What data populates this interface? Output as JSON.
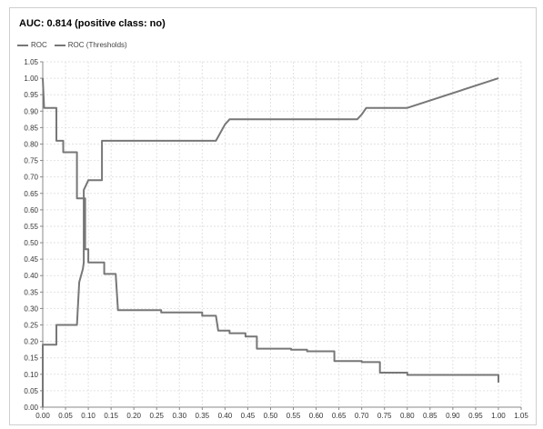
{
  "chart_data": {
    "type": "line",
    "title": "AUC: 0.814 (positive class: no)",
    "xlabel": "",
    "ylabel": "",
    "xlim": [
      0.0,
      1.05
    ],
    "ylim": [
      0.0,
      1.05
    ],
    "xticks": [
      "0.00",
      "0.05",
      "0.10",
      "0.15",
      "0.20",
      "0.25",
      "0.30",
      "0.35",
      "0.40",
      "0.45",
      "0.50",
      "0.55",
      "0.60",
      "0.65",
      "0.70",
      "0.75",
      "0.80",
      "0.85",
      "0.90",
      "0.95",
      "1.00",
      "1.05"
    ],
    "yticks": [
      "0.00",
      "0.05",
      "0.10",
      "0.15",
      "0.20",
      "0.25",
      "0.30",
      "0.35",
      "0.40",
      "0.45",
      "0.50",
      "0.55",
      "0.60",
      "0.65",
      "0.70",
      "0.75",
      "0.80",
      "0.85",
      "0.90",
      "0.95",
      "1.00",
      "1.05"
    ],
    "grid": true,
    "legend_position": "top-left",
    "series": [
      {
        "name": "ROC",
        "color": "#777777",
        "points": [
          [
            0.0,
            0.0
          ],
          [
            0.0,
            0.19
          ],
          [
            0.03,
            0.19
          ],
          [
            0.03,
            0.25
          ],
          [
            0.075,
            0.25
          ],
          [
            0.08,
            0.38
          ],
          [
            0.088,
            0.42
          ],
          [
            0.09,
            0.44
          ],
          [
            0.09,
            0.66
          ],
          [
            0.095,
            0.675
          ],
          [
            0.1,
            0.69
          ],
          [
            0.13,
            0.69
          ],
          [
            0.13,
            0.81
          ],
          [
            0.38,
            0.81
          ],
          [
            0.4,
            0.86
          ],
          [
            0.41,
            0.875
          ],
          [
            0.69,
            0.875
          ],
          [
            0.7,
            0.89
          ],
          [
            0.71,
            0.91
          ],
          [
            0.8,
            0.91
          ],
          [
            1.0,
            1.0
          ]
        ]
      },
      {
        "name": "ROC (Thresholds)",
        "color": "#777777",
        "points": [
          [
            0.0,
            1.0
          ],
          [
            0.003,
            0.91
          ],
          [
            0.03,
            0.91
          ],
          [
            0.03,
            0.81
          ],
          [
            0.045,
            0.81
          ],
          [
            0.045,
            0.775
          ],
          [
            0.075,
            0.775
          ],
          [
            0.075,
            0.635
          ],
          [
            0.093,
            0.635
          ],
          [
            0.093,
            0.48
          ],
          [
            0.1,
            0.48
          ],
          [
            0.1,
            0.44
          ],
          [
            0.135,
            0.44
          ],
          [
            0.135,
            0.405
          ],
          [
            0.16,
            0.405
          ],
          [
            0.165,
            0.295
          ],
          [
            0.26,
            0.295
          ],
          [
            0.26,
            0.288
          ],
          [
            0.35,
            0.288
          ],
          [
            0.35,
            0.278
          ],
          [
            0.38,
            0.278
          ],
          [
            0.385,
            0.233
          ],
          [
            0.41,
            0.233
          ],
          [
            0.41,
            0.225
          ],
          [
            0.445,
            0.225
          ],
          [
            0.445,
            0.215
          ],
          [
            0.47,
            0.215
          ],
          [
            0.47,
            0.178
          ],
          [
            0.545,
            0.178
          ],
          [
            0.545,
            0.175
          ],
          [
            0.58,
            0.175
          ],
          [
            0.58,
            0.17
          ],
          [
            0.64,
            0.17
          ],
          [
            0.64,
            0.14
          ],
          [
            0.7,
            0.14
          ],
          [
            0.7,
            0.137
          ],
          [
            0.74,
            0.137
          ],
          [
            0.74,
            0.105
          ],
          [
            0.8,
            0.105
          ],
          [
            0.8,
            0.098
          ],
          [
            1.0,
            0.098
          ],
          [
            1.0,
            0.075
          ]
        ]
      }
    ]
  }
}
